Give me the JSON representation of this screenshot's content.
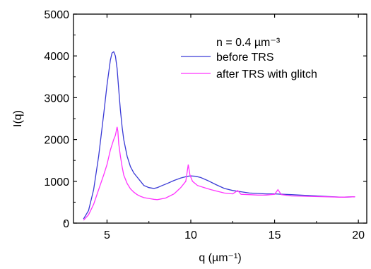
{
  "chart_data": {
    "type": "line",
    "title": "",
    "xlabel": "q (µm⁻¹)",
    "ylabel": "I(q)",
    "xlim": [
      3,
      20.5
    ],
    "ylim": [
      0,
      5000
    ],
    "xticks": [
      5,
      10,
      15,
      20
    ],
    "yticks": [
      0,
      1000,
      2000,
      3000,
      4000,
      5000
    ],
    "grid": false,
    "legend_position": "top-right",
    "annotation": "n = 0.4 µm⁻³",
    "colors": {
      "before": "#3a3ad6",
      "after": "#ff33ff"
    },
    "series": [
      {
        "name": "before TRS",
        "x": [
          3.6,
          3.9,
          4.2,
          4.5,
          4.8,
          5.0,
          5.2,
          5.3,
          5.4,
          5.5,
          5.6,
          5.7,
          5.8,
          5.9,
          6.0,
          6.2,
          6.4,
          6.6,
          6.8,
          7.0,
          7.2,
          7.5,
          7.8,
          8.0,
          8.3,
          8.6,
          9.0,
          9.4,
          9.8,
          10.0,
          10.3,
          10.6,
          11.0,
          11.5,
          12.0,
          12.5,
          13.0,
          13.5,
          14.0,
          14.5,
          15.0,
          15.5,
          16.0,
          17.0,
          18.0,
          19.0,
          19.8
        ],
        "y": [
          100,
          300,
          800,
          1600,
          2600,
          3300,
          3900,
          4070,
          4100,
          4000,
          3700,
          3200,
          2700,
          2300,
          2000,
          1600,
          1350,
          1200,
          1100,
          1000,
          900,
          850,
          830,
          850,
          900,
          950,
          1020,
          1080,
          1120,
          1130,
          1120,
          1090,
          1020,
          920,
          830,
          780,
          750,
          720,
          710,
          700,
          700,
          690,
          680,
          660,
          640,
          620,
          630
        ]
      },
      {
        "name": "after TRS with glitch",
        "x": [
          3.6,
          3.9,
          4.2,
          4.5,
          4.8,
          5.0,
          5.2,
          5.4,
          5.5,
          5.6,
          5.65,
          5.7,
          5.8,
          5.9,
          6.0,
          6.2,
          6.4,
          6.6,
          6.8,
          7.0,
          7.2,
          7.5,
          7.8,
          8.0,
          8.5,
          9.0,
          9.4,
          9.7,
          9.85,
          9.95,
          10.1,
          10.4,
          10.8,
          11.2,
          11.6,
          12.0,
          12.5,
          12.8,
          13.0,
          13.5,
          14.0,
          14.5,
          15.0,
          15.2,
          15.4,
          16.0,
          17.0,
          18.0,
          19.0,
          19.8
        ],
        "y": [
          70,
          200,
          450,
          800,
          1150,
          1400,
          1750,
          2000,
          2100,
          2300,
          2200,
          1900,
          1600,
          1350,
          1150,
          950,
          820,
          740,
          680,
          640,
          610,
          590,
          570,
          560,
          600,
          700,
          850,
          1000,
          1400,
          1150,
          1000,
          900,
          850,
          800,
          760,
          720,
          700,
          780,
          690,
          680,
          670,
          670,
          690,
          800,
          680,
          650,
          640,
          630,
          620,
          630
        ]
      }
    ]
  }
}
